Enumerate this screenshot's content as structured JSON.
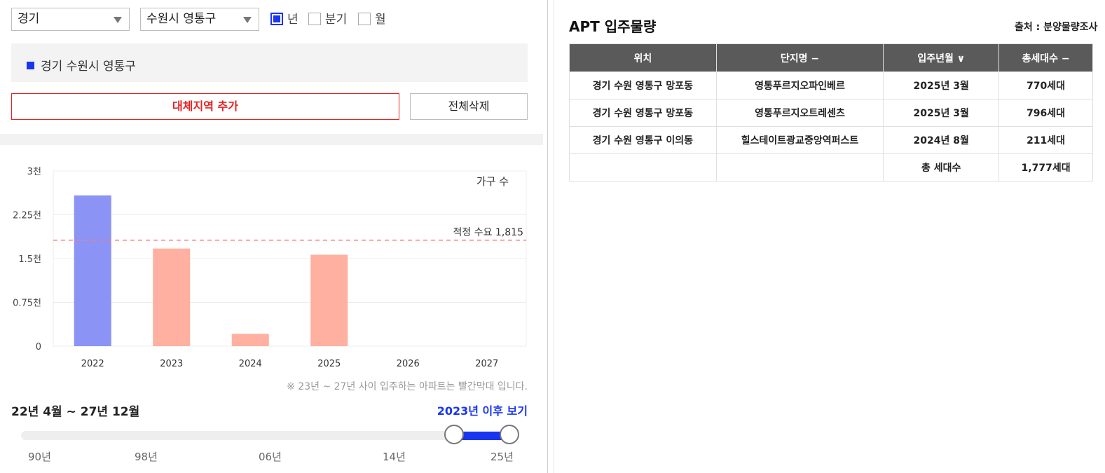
{
  "filters": {
    "province": "경기",
    "district": "수원시 영통구",
    "periods": [
      {
        "label": "년",
        "checked": true
      },
      {
        "label": "분기",
        "checked": false
      },
      {
        "label": "월",
        "checked": false
      }
    ]
  },
  "selected_region": "경기 수원시 영통구",
  "buttons": {
    "add_region": "대체지역 추가",
    "clear_all": "전체삭제"
  },
  "chart_data": {
    "type": "bar",
    "categories": [
      "2022",
      "2023",
      "2024",
      "2025",
      "2026",
      "2027"
    ],
    "values": [
      2582,
      1672,
      211,
      1566,
      0,
      0
    ],
    "bar_colors": [
      "#8b93f5",
      "#ffb0a0",
      "#ffb0a0",
      "#ffb0a0",
      "#ffb0a0",
      "#ffb0a0"
    ],
    "ylim": [
      0,
      3000
    ],
    "yticks": [
      {
        "value": 0,
        "label": "0"
      },
      {
        "value": 750,
        "label": "0.75천"
      },
      {
        "value": 1500,
        "label": "1.5천"
      },
      {
        "value": 2250,
        "label": "2.25천"
      },
      {
        "value": 3000,
        "label": "3천"
      }
    ],
    "legend_label": "가구 수",
    "reference_line": {
      "value": 1815,
      "label": "적정 수요 1,815",
      "color": "#f08080"
    }
  },
  "chart_note": "※ 23년 ~ 27년 사이 입주하는 아파트는 빨간막대 입니다.",
  "period_range": "22년 4월 ~ 27년 12월",
  "after_link": "2023년 이후 보기",
  "slider": {
    "ticks": [
      "90년",
      "98년",
      "06년",
      "14년",
      "25년"
    ],
    "range_start_fraction": 0.883,
    "range_end_fraction": 0.996
  },
  "table": {
    "title": "APT 입주물량",
    "source": "출처 : 분양물량조사",
    "columns": [
      "위치",
      "단지명 −",
      "입주년월 ∨",
      "총세대수 −"
    ],
    "rows": [
      [
        "경기 수원 영통구 망포동",
        "영통푸르지오파인베르",
        "2025년 3월",
        "770세대"
      ],
      [
        "경기 수원 영통구 망포동",
        "영통푸르지오트레센츠",
        "2025년 3월",
        "796세대"
      ],
      [
        "경기 수원 영통구 이의동",
        "힐스테이트광교중앙역퍼스트",
        "2024년 8월",
        "211세대"
      ]
    ],
    "total_label": "총 세대수",
    "total_value": "1,777세대"
  }
}
